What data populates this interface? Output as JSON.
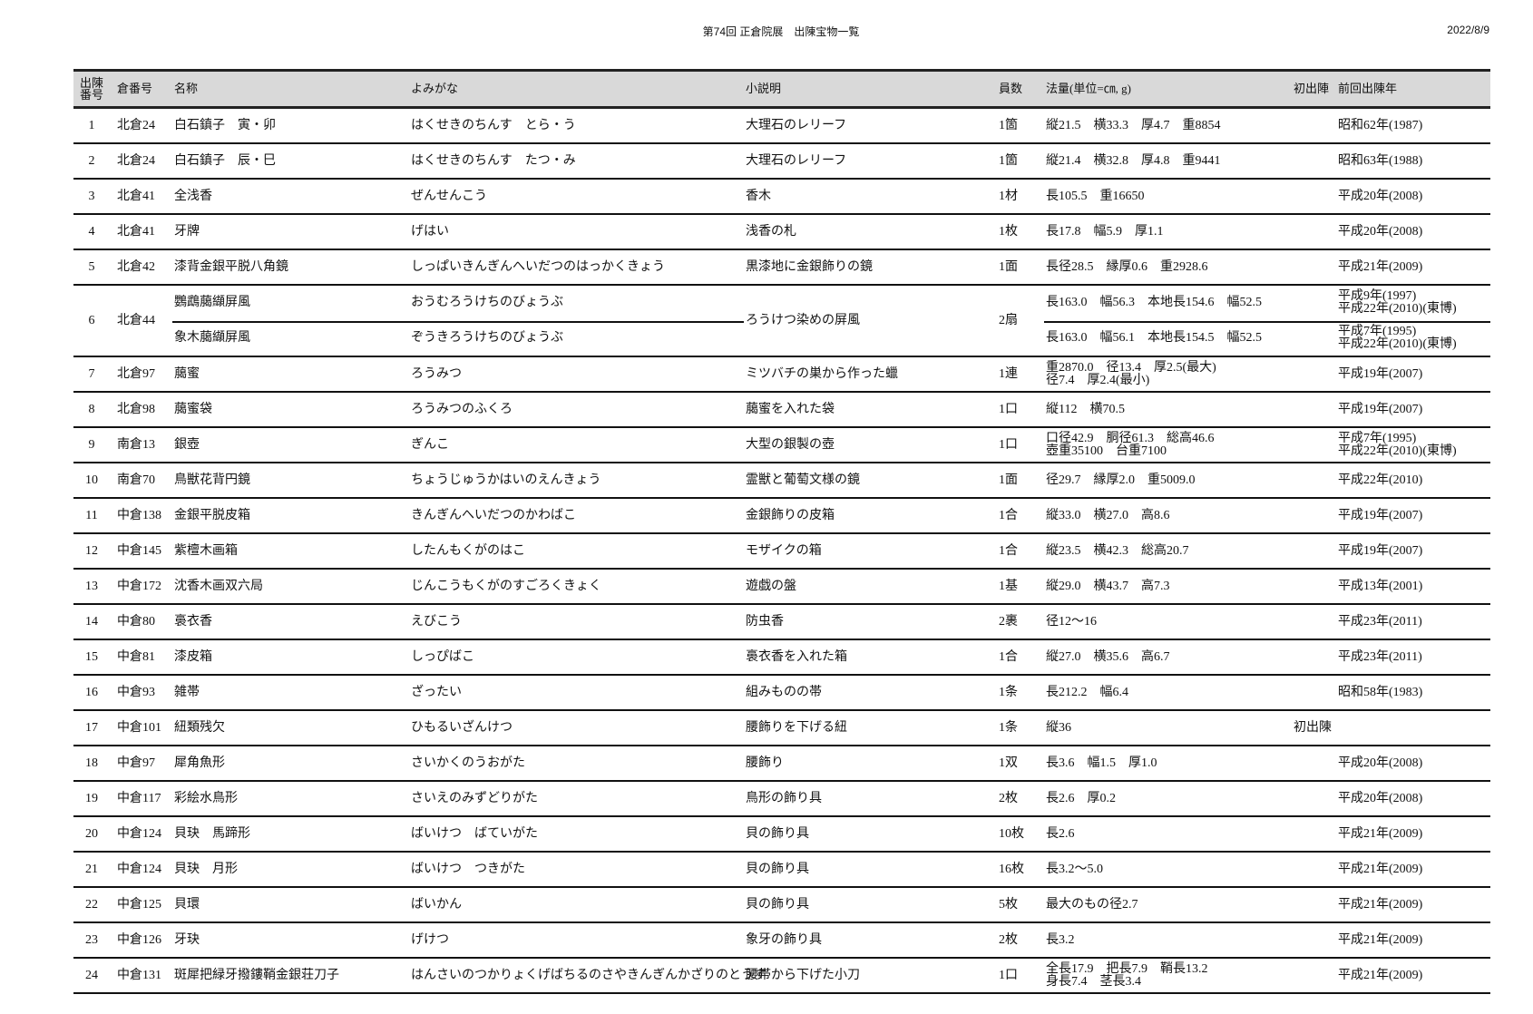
{
  "header": {
    "title": "第74回 正倉院展　出陳宝物一覧",
    "date": "2022/8/9"
  },
  "columns": {
    "no": "出陳\n番号",
    "no_line1": "出陳",
    "no_line2": "番号",
    "storehouse": "倉番号",
    "name": "名称",
    "reading": "よみがな",
    "description": "小説明",
    "count": "員数",
    "dimensions": "法量(単位=㎝, g)",
    "first": "初出陣",
    "previous": "前回出陳年"
  },
  "rows": [
    {
      "no": "1",
      "store": "北倉24",
      "name": "白石鎮子　寅・卯",
      "reading": "はくせきのちんす　とら・う",
      "desc": "大理石のレリーフ",
      "count": "1箇",
      "dim": [
        "縦21.5　横33.3　厚4.7　重8854"
      ],
      "first": "",
      "prev": [
        "昭和62年(1987)"
      ]
    },
    {
      "no": "2",
      "store": "北倉24",
      "name": "白石鎮子　辰・巳",
      "reading": "はくせきのちんす　たつ・み",
      "desc": "大理石のレリーフ",
      "count": "1箇",
      "dim": [
        "縦21.4　横32.8　厚4.8　重9441"
      ],
      "first": "",
      "prev": [
        "昭和63年(1988)"
      ]
    },
    {
      "no": "3",
      "store": "北倉41",
      "name": "全浅香",
      "reading": "ぜんせんこう",
      "desc": "香木",
      "count": "1材",
      "dim": [
        "長105.5　重16650"
      ],
      "first": "",
      "prev": [
        "平成20年(2008)"
      ]
    },
    {
      "no": "4",
      "store": "北倉41",
      "name": "牙牌",
      "reading": "げはい",
      "desc": "浅香の札",
      "count": "1枚",
      "dim": [
        "長17.8　幅5.9　厚1.1"
      ],
      "first": "",
      "prev": [
        "平成20年(2008)"
      ]
    },
    {
      "no": "5",
      "store": "北倉42",
      "name": "漆背金銀平脱八角鏡",
      "reading": "しっぱいきんぎんへいだつのはっかくきょう",
      "desc": "黒漆地に金銀飾りの鏡",
      "count": "1面",
      "dim": [
        "長径28.5　縁厚0.6　重2928.6"
      ],
      "first": "",
      "prev": [
        "平成21年(2009)"
      ]
    },
    {
      "no": "6",
      "store": "北倉44",
      "desc": "ろうけつ染めの屏風",
      "count": "2扇",
      "items": [
        {
          "name": "鸚鵡﨟纈屏風",
          "reading": "おうむろうけちのびょうぶ",
          "dim": [
            "長163.0　幅56.3　本地長154.6　幅52.5"
          ],
          "prev": [
            "平成9年(1997)",
            "平成22年(2010)(東博)"
          ]
        },
        {
          "name": "象木﨟纈屏風",
          "reading": "ぞうきろうけちのびょうぶ",
          "dim": [
            "長163.0　幅56.1　本地長154.5　幅52.5"
          ],
          "prev": [
            "平成7年(1995)",
            "平成22年(2010)(東博)"
          ]
        }
      ]
    },
    {
      "no": "7",
      "store": "北倉97",
      "name": "﨟蜜",
      "reading": "ろうみつ",
      "desc": "ミツバチの巣から作った蠟",
      "count": "1連",
      "dim": [
        "重2870.0　径13.4　厚2.5(最大)",
        "径7.4　厚2.4(最小)"
      ],
      "first": "",
      "prev": [
        "平成19年(2007)"
      ]
    },
    {
      "no": "8",
      "store": "北倉98",
      "name": "﨟蜜袋",
      "reading": "ろうみつのふくろ",
      "desc": "﨟蜜を入れた袋",
      "count": "1口",
      "dim": [
        "縦112　横70.5"
      ],
      "first": "",
      "prev": [
        "平成19年(2007)"
      ]
    },
    {
      "no": "9",
      "store": "南倉13",
      "name": "銀壺",
      "reading": "ぎんこ",
      "desc": "大型の銀製の壺",
      "count": "1口",
      "dim": [
        "口径42.9　胴径61.3　総高46.6",
        "壺重35100　台重7100"
      ],
      "first": "",
      "prev": [
        "平成7年(1995)",
        "平成22年(2010)(東博)"
      ]
    },
    {
      "no": "10",
      "store": "南倉70",
      "name": "鳥獣花背円鏡",
      "reading": "ちょうじゅうかはいのえんきょう",
      "desc": "霊獣と葡萄文様の鏡",
      "count": "1面",
      "dim": [
        "径29.7　縁厚2.0　重5009.0"
      ],
      "first": "",
      "prev": [
        "平成22年(2010)"
      ]
    },
    {
      "no": "11",
      "store": "中倉138",
      "name": "金銀平脱皮箱",
      "reading": "きんぎんへいだつのかわばこ",
      "desc": "金銀飾りの皮箱",
      "count": "1合",
      "dim": [
        "縦33.0　横27.0　高8.6"
      ],
      "first": "",
      "prev": [
        "平成19年(2007)"
      ]
    },
    {
      "no": "12",
      "store": "中倉145",
      "name": "紫檀木画箱",
      "reading": "したんもくがのはこ",
      "desc": "モザイクの箱",
      "count": "1合",
      "dim": [
        "縦23.5　横42.3　総高20.7"
      ],
      "first": "",
      "prev": [
        "平成19年(2007)"
      ]
    },
    {
      "no": "13",
      "store": "中倉172",
      "name": "沈香木画双六局",
      "reading": "じんこうもくがのすごろくきょく",
      "desc": "遊戯の盤",
      "count": "1基",
      "dim": [
        "縦29.0　横43.7　高7.3"
      ],
      "first": "",
      "prev": [
        "平成13年(2001)"
      ]
    },
    {
      "no": "14",
      "store": "中倉80",
      "name": "裛衣香",
      "reading": "えびこう",
      "desc": "防虫香",
      "count": "2裹",
      "dim": [
        "径12～16"
      ],
      "first": "",
      "prev": [
        "平成23年(2011)"
      ]
    },
    {
      "no": "15",
      "store": "中倉81",
      "name": "漆皮箱",
      "reading": "しっぴばこ",
      "desc": "裛衣香を入れた箱",
      "count": "1合",
      "dim": [
        "縦27.0　横35.6　高6.7"
      ],
      "first": "",
      "prev": [
        "平成23年(2011)"
      ]
    },
    {
      "no": "16",
      "store": "中倉93",
      "name": "雑帯",
      "reading": "ざったい",
      "desc": "組みものの帯",
      "count": "1条",
      "dim": [
        "長212.2　幅6.4"
      ],
      "first": "",
      "prev": [
        "昭和58年(1983)"
      ]
    },
    {
      "no": "17",
      "store": "中倉101",
      "name": "紐類残欠",
      "reading": "ひもるいざんけつ",
      "desc": "腰飾りを下げる紐",
      "count": "1条",
      "dim": [
        "縦36"
      ],
      "first": "初出陳",
      "prev": []
    },
    {
      "no": "18",
      "store": "中倉97",
      "name": "犀角魚形",
      "reading": "さいかくのうおがた",
      "desc": "腰飾り",
      "count": "1双",
      "dim": [
        "長3.6　幅1.5　厚1.0"
      ],
      "first": "",
      "prev": [
        "平成20年(2008)"
      ]
    },
    {
      "no": "19",
      "store": "中倉117",
      "name": "彩絵水鳥形",
      "reading": "さいえのみずどりがた",
      "desc": "鳥形の飾り具",
      "count": "2枚",
      "dim": [
        "長2.6　厚0.2"
      ],
      "first": "",
      "prev": [
        "平成20年(2008)"
      ]
    },
    {
      "no": "20",
      "store": "中倉124",
      "name": "貝玦　馬蹄形",
      "reading": "ばいけつ　ばていがた",
      "desc": "貝の飾り具",
      "count": "10枚",
      "dim": [
        "長2.6"
      ],
      "first": "",
      "prev": [
        "平成21年(2009)"
      ]
    },
    {
      "no": "21",
      "store": "中倉124",
      "name": "貝玦　月形",
      "reading": "ばいけつ　つきがた",
      "desc": "貝の飾り具",
      "count": "16枚",
      "dim": [
        "長3.2～5.0"
      ],
      "first": "",
      "prev": [
        "平成21年(2009)"
      ]
    },
    {
      "no": "22",
      "store": "中倉125",
      "name": "貝環",
      "reading": "ばいかん",
      "desc": "貝の飾り具",
      "count": "5枚",
      "dim": [
        "最大のもの径2.7"
      ],
      "first": "",
      "prev": [
        "平成21年(2009)"
      ]
    },
    {
      "no": "23",
      "store": "中倉126",
      "name": "牙玦",
      "reading": "げけつ",
      "desc": "象牙の飾り具",
      "count": "2枚",
      "dim": [
        "長3.2"
      ],
      "first": "",
      "prev": [
        "平成21年(2009)"
      ]
    },
    {
      "no": "24",
      "store": "中倉131",
      "name": "斑犀把緑牙撥鏤鞘金銀荘刀子",
      "reading": "はんさいのつかりょくげばちるのさやきんぎんかざりのとうす",
      "desc": "腰帯から下げた小刀",
      "count": "1口",
      "dim": [
        "全長17.9　把長7.9　鞘長13.2",
        "身長7.4　茎長3.4"
      ],
      "first": "",
      "prev": [
        "平成21年(2009)"
      ]
    }
  ]
}
